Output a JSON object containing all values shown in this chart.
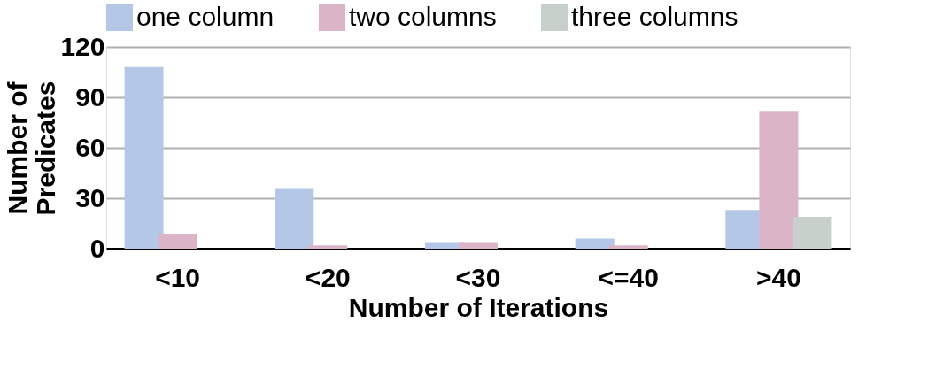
{
  "chart_data": {
    "type": "bar",
    "xlabel": "Number of Iterations",
    "ylabel": "Number of Predicates",
    "categories": [
      "<10",
      "<20",
      "<30",
      "<=40",
      ">40"
    ],
    "series": [
      {
        "name": "one column",
        "color": "#b4c7e7",
        "values": [
          108,
          36,
          4,
          6,
          23
        ]
      },
      {
        "name": "two columns",
        "color": "#dcb4c8",
        "values": [
          9,
          2,
          4,
          2,
          82
        ]
      },
      {
        "name": "three columns",
        "color": "#c8d0cc",
        "values": [
          null,
          null,
          null,
          null,
          19
        ]
      }
    ],
    "ylim": [
      0,
      120
    ],
    "yticks": [
      0,
      30,
      60,
      90,
      120
    ],
    "grid": "y",
    "legend": "top"
  }
}
